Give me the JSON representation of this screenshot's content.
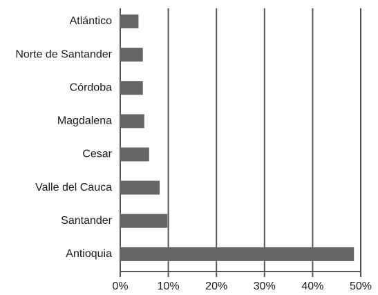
{
  "chart_data": {
    "type": "bar",
    "orientation": "horizontal",
    "categories": [
      "Atlántico",
      "Norte de Santander",
      "Córdoba",
      "Magdalena",
      "Cesar",
      "Valle del Cauca",
      "Santander",
      "Antioquia"
    ],
    "values": [
      3.8,
      4.7,
      4.7,
      5.0,
      6.0,
      8.2,
      9.8,
      48.6
    ],
    "color": "#666666",
    "xlim": [
      0,
      50
    ],
    "xticks": [
      {
        "value": 0,
        "label": "0%"
      },
      {
        "value": 10,
        "label": "10%"
      },
      {
        "value": 20,
        "label": "20%"
      },
      {
        "value": 30,
        "label": "30%"
      },
      {
        "value": 40,
        "label": "40%"
      },
      {
        "value": 50,
        "label": "50%"
      }
    ],
    "grid": true
  }
}
